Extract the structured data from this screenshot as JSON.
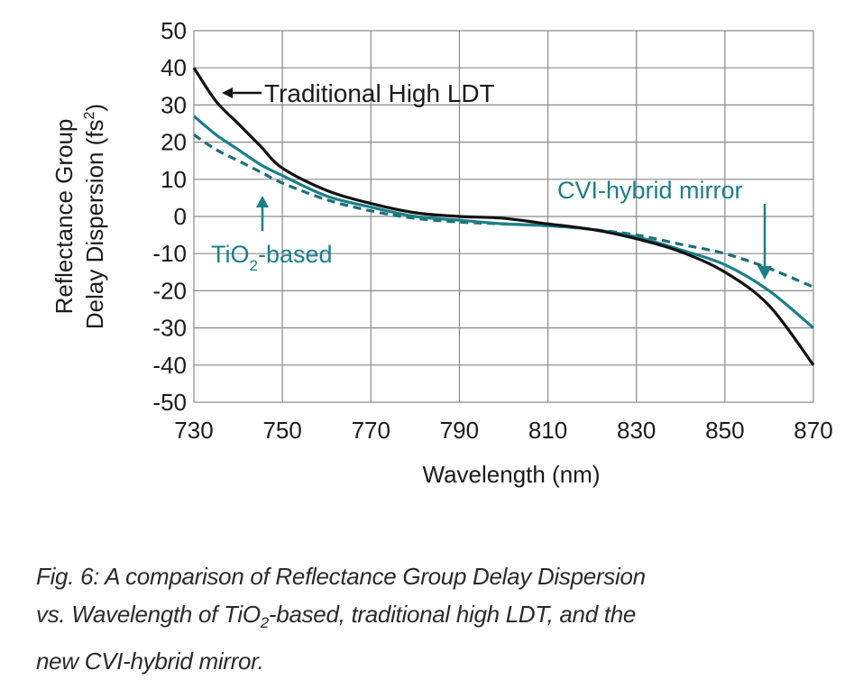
{
  "chart_data": {
    "type": "line",
    "xlabel": "Wavelength (nm)",
    "ylabel_line1": "Reflectance Group",
    "ylabel_line2": "Delay Dispersion (fs",
    "ylabel_sup": "2",
    "ylabel_end": ")",
    "xlim": [
      730,
      870
    ],
    "ylim": [
      -50,
      50
    ],
    "xticks": [
      "730",
      "750",
      "770",
      "790",
      "810",
      "830",
      "850",
      "870"
    ],
    "yticks": [
      "50",
      "40",
      "30",
      "20",
      "10",
      "0",
      "-10",
      "-20",
      "-30",
      "-40",
      "-50"
    ],
    "grid": true,
    "x": [
      730,
      735,
      740,
      745,
      750,
      760,
      770,
      780,
      790,
      800,
      810,
      820,
      830,
      840,
      850,
      860,
      870
    ],
    "series": [
      {
        "name": "Traditional High LDT",
        "color": "#111111",
        "style": "solid",
        "values": [
          40,
          31,
          25,
          19,
          13,
          7,
          3.5,
          1,
          0,
          -0.5,
          -2,
          -3.5,
          -6,
          -9.5,
          -15,
          -24,
          -40
        ]
      },
      {
        "name": "TiO2-based",
        "color": "#1b7f88",
        "style": "solid",
        "values": [
          27,
          22,
          18,
          14,
          11,
          5.5,
          2.5,
          0,
          -1,
          -2,
          -2.5,
          -3.5,
          -5.5,
          -9,
          -13,
          -20,
          -30
        ]
      },
      {
        "name": "CVI-hybrid mirror",
        "color": "#1b6f78",
        "style": "dashed",
        "values": [
          22,
          18,
          15,
          12,
          9,
          4.5,
          1.5,
          -0.5,
          -1.5,
          -2,
          -2.5,
          -3.5,
          -5,
          -7.5,
          -10,
          -14,
          -19
        ]
      }
    ],
    "annotations": {
      "traditional": "Traditional High LDT",
      "tio2_pre": "TiO",
      "tio2_sub": "2",
      "tio2_post": "-based",
      "cvi": "CVI-hybrid mirror"
    }
  },
  "caption": {
    "line1": "Fig. 6: A comparison of Reflectance Group Delay Dispersion",
    "line2_pre": "vs. Wavelength of TiO",
    "line2_sub": "2",
    "line2_post": "-based, traditional high LDT, and the",
    "line3": "new CVI-hybrid mirror."
  }
}
